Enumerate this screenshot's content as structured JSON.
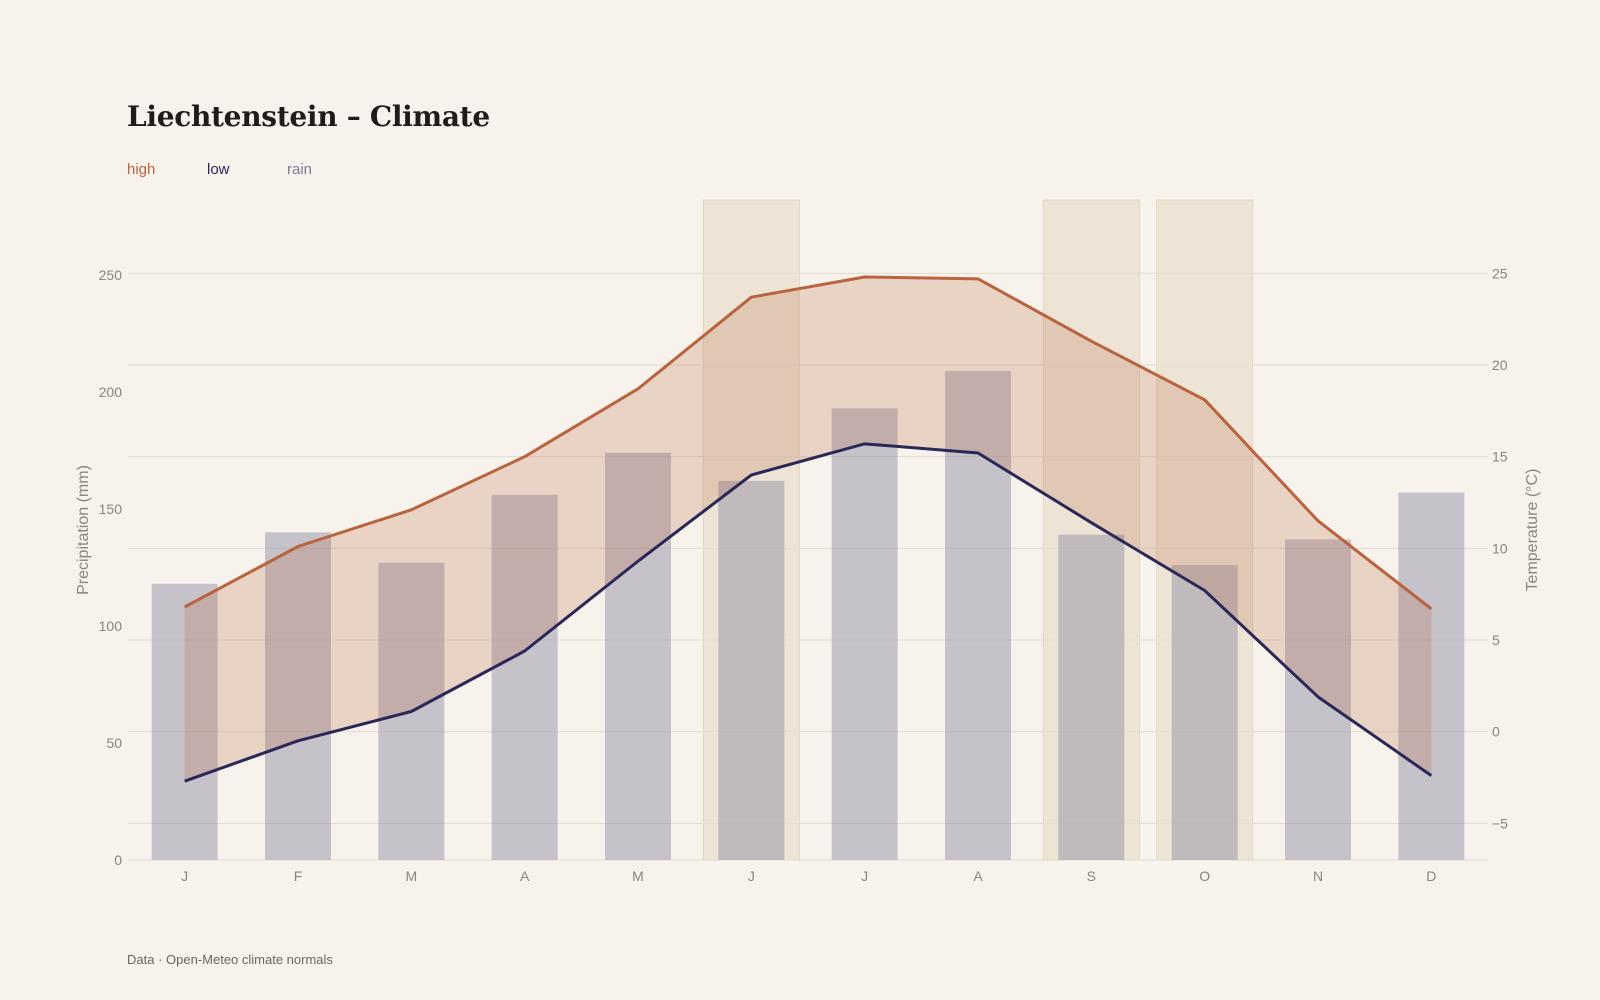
{
  "title": "Liechtenstein – Climate",
  "legend": {
    "high": "high",
    "low": "low",
    "rain": "rain"
  },
  "footer": "Data · Open-Meteo climate normals",
  "colors": {
    "high": "#b8643f",
    "low": "#2b2858",
    "rain": "#7d7a95",
    "band": "#e9dfcd",
    "grid": "#e3dcd2",
    "background": "#f7f2eb"
  },
  "chart_data": {
    "type": "bar",
    "categories": [
      "J",
      "F",
      "M",
      "A",
      "M",
      "J",
      "J",
      "A",
      "S",
      "O",
      "N",
      "D"
    ],
    "series": [
      {
        "name": "rain",
        "type": "bar",
        "axis": "left",
        "values": [
          118,
          140,
          127,
          156,
          174,
          162,
          193,
          209,
          139,
          126,
          137,
          157
        ]
      },
      {
        "name": "high",
        "type": "line",
        "axis": "right",
        "values": [
          6.8,
          10.1,
          12.1,
          15.0,
          18.7,
          23.7,
          24.8,
          24.7,
          21.3,
          18.1,
          11.5,
          6.7
        ]
      },
      {
        "name": "low",
        "type": "line",
        "axis": "right",
        "values": [
          -2.7,
          -0.5,
          1.1,
          4.4,
          9.3,
          14.0,
          15.7,
          15.2,
          11.4,
          7.7,
          1.9,
          -2.4
        ]
      }
    ],
    "highlighted_months": [
      5,
      8,
      9
    ],
    "ylabel_left": "Precipitation (mm)",
    "ylabel_right": "Temperature (°C)",
    "ylim_left": [
      0,
      282
    ],
    "ylim_right": [
      -7,
      29
    ],
    "yticks_left": [
      "0",
      "50",
      "100",
      "150",
      "200",
      "250"
    ],
    "yticks_right": [
      "−5",
      "0",
      "5",
      "10",
      "15",
      "20",
      "25"
    ],
    "grid": true,
    "legend_position": "top-left"
  }
}
